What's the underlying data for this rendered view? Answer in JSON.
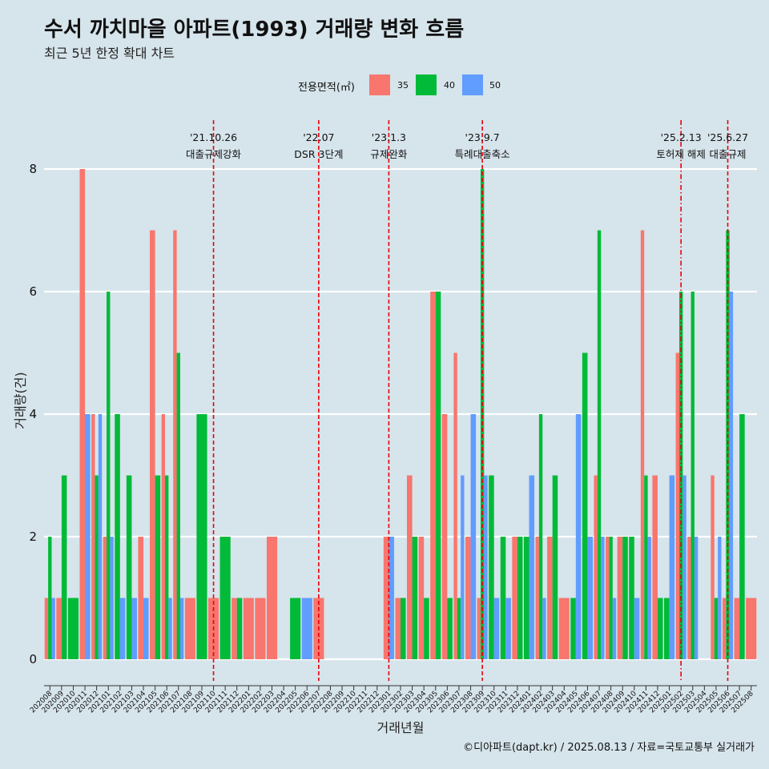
{
  "title": "수서 까치마을 아파트(1993) 거래량 변화 흐름",
  "subtitle": "최근 5년 한정 확대 차트",
  "legend": {
    "title": "전용면적(㎡)",
    "position": "top"
  },
  "caption": "©디아파트(dapt.kr) / 2025.08.13 / 자료=국토교통부 실거래가",
  "chart_data": {
    "type": "bar",
    "xlabel": "거래년월",
    "ylabel": "거래량(건)",
    "ylim": [
      0,
      9
    ],
    "yticks": [
      "0",
      "2",
      "4",
      "6",
      "8"
    ],
    "grid": true,
    "categories": [
      "202008",
      "202009",
      "202010",
      "202011",
      "202012",
      "202101",
      "202102",
      "202103",
      "202104",
      "202105",
      "202106",
      "202107",
      "202108",
      "202109",
      "202110",
      "202111",
      "202112",
      "202201",
      "202202",
      "202203",
      "202204",
      "202205",
      "202206",
      "202207",
      "202208",
      "202209",
      "202210",
      "202211",
      "202212",
      "202301",
      "202302",
      "202303",
      "202304",
      "202305",
      "202306",
      "202307",
      "202308",
      "202309",
      "202310",
      "202311",
      "202312",
      "202401",
      "202402",
      "202403",
      "202404",
      "202405",
      "202406",
      "202407",
      "202408",
      "202409",
      "202410",
      "202411",
      "202412",
      "202501",
      "202502",
      "202503",
      "202504",
      "202505",
      "202506",
      "202507",
      "202508"
    ],
    "series": [
      {
        "name": "35",
        "color": "#f8766d",
        "values": [
          1,
          1,
          0,
          8,
          4,
          2,
          0,
          0,
          2,
          7,
          4,
          7,
          1,
          0,
          1,
          0,
          1,
          1,
          1,
          2,
          0,
          0,
          0,
          1,
          0,
          0,
          0,
          0,
          0,
          2,
          1,
          3,
          2,
          6,
          4,
          5,
          2,
          1,
          0,
          0,
          2,
          0,
          2,
          2,
          1,
          0,
          0,
          3,
          2,
          2,
          0,
          7,
          3,
          0,
          5,
          2,
          0,
          3,
          1,
          1,
          1
        ]
      },
      {
        "name": "40",
        "color": "#00ba38",
        "values": [
          2,
          3,
          1,
          0,
          3,
          6,
          4,
          3,
          0,
          3,
          3,
          5,
          0,
          4,
          0,
          2,
          1,
          0,
          0,
          0,
          0,
          1,
          0,
          0,
          0,
          0,
          0,
          0,
          0,
          0,
          1,
          2,
          1,
          6,
          1,
          1,
          0,
          8,
          3,
          2,
          2,
          2,
          4,
          3,
          0,
          1,
          5,
          7,
          2,
          2,
          2,
          3,
          1,
          1,
          6,
          6,
          0,
          1,
          7,
          4,
          0
        ]
      },
      {
        "name": "50",
        "color": "#619cff",
        "values": [
          1,
          0,
          0,
          4,
          4,
          2,
          1,
          1,
          1,
          0,
          1,
          1,
          0,
          0,
          0,
          0,
          0,
          0,
          0,
          0,
          0,
          0,
          1,
          0,
          0,
          0,
          0,
          0,
          0,
          2,
          0,
          0,
          0,
          0,
          0,
          3,
          4,
          3,
          1,
          1,
          0,
          3,
          1,
          0,
          0,
          4,
          2,
          2,
          1,
          0,
          1,
          2,
          0,
          3,
          3,
          2,
          0,
          2,
          6,
          0,
          0
        ]
      }
    ],
    "events": [
      {
        "date": "'21.10.26",
        "label": "대출규제강화",
        "category": "202110",
        "style": "dashed"
      },
      {
        "date": "'22.07",
        "label": "DSR 3단계",
        "category": "202207",
        "style": "dashed"
      },
      {
        "date": "'23.1.3",
        "label": "규제완화",
        "category": "202301",
        "style": "dashed"
      },
      {
        "date": "'23.9.7",
        "label": "특례대출축소",
        "category": "202309",
        "style": "dashed"
      },
      {
        "date": "'25.2.13",
        "label": "토허제 해제",
        "category": "202502",
        "style": "dashdot"
      },
      {
        "date": "'25.6.27",
        "label": "대출규제",
        "category": "202506",
        "style": "dashed"
      }
    ]
  }
}
